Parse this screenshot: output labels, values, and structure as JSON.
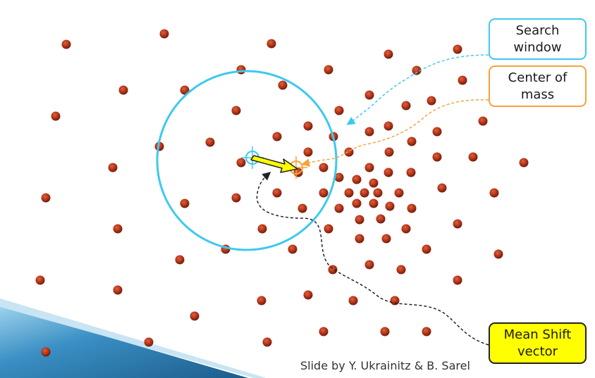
{
  "labels": {
    "search_window": [
      "Search",
      "window"
    ],
    "center_of_mass": [
      "Center of",
      "mass"
    ],
    "mean_shift_vector": [
      "Mean Shift",
      "vector"
    ]
  },
  "credit": "Slide by Y. Ukrainitz & B. Sarel",
  "colors": {
    "point": "#b5361a",
    "search_window": "#3ec8ef",
    "center_of_mass": "#f6a23c",
    "arrow": "#ffff00",
    "banner": "#3a8fc4"
  }
}
